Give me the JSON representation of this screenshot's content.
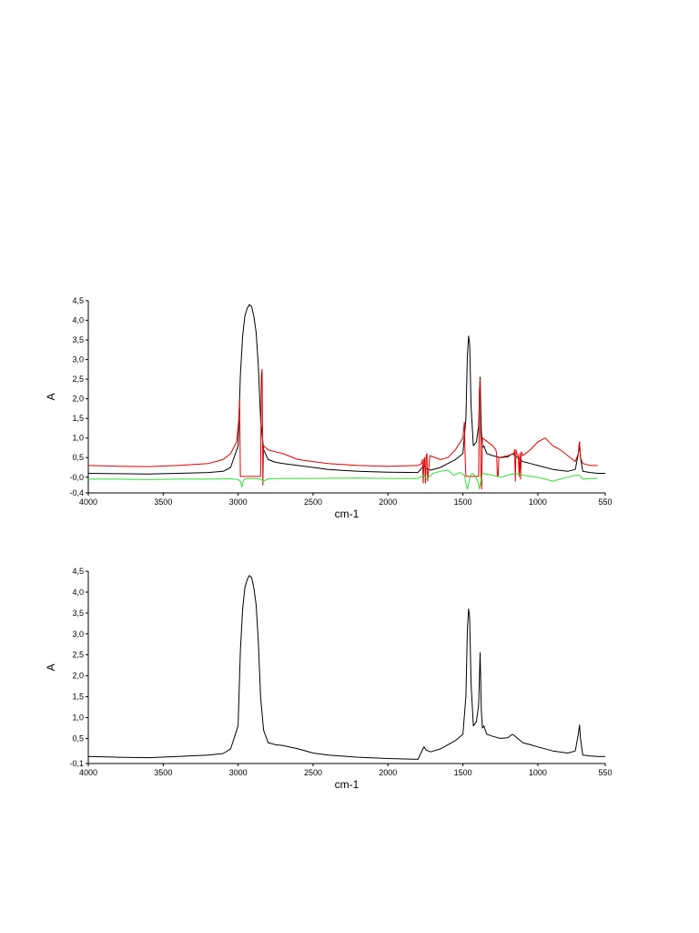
{
  "chart_data": [
    {
      "type": "line",
      "xlabel": "cm-1",
      "ylabel": "A",
      "xlim": [
        4000,
        550
      ],
      "ylim": [
        -0.4,
        4.5
      ],
      "x_reversed": true,
      "xticks": [
        4000,
        3500,
        3000,
        2500,
        2000,
        1500,
        1000,
        550
      ],
      "xtick_labels": [
        "4000",
        "3500",
        "3000",
        "2500",
        "2000",
        "1500",
        "1000",
        "550"
      ],
      "yticks": [
        -0.4,
        0.0,
        0.5,
        1.0,
        1.5,
        2.0,
        2.5,
        3.0,
        3.5,
        4.0,
        4.5
      ],
      "ytick_labels": [
        "-0,4",
        "-0,0",
        "0,5",
        "1,0",
        "1,5",
        "2,0",
        "2,5",
        "3,0",
        "3,5",
        "4,0",
        "4,5"
      ],
      "series": [
        {
          "color": "#000000",
          "x": [
            4000,
            3800,
            3600,
            3400,
            3200,
            3100,
            3050,
            3000,
            2985,
            2970,
            2955,
            2940,
            2925,
            2910,
            2895,
            2880,
            2865,
            2850,
            2830,
            2800,
            2750,
            2700,
            2600,
            2500,
            2400,
            2200,
            2000,
            1800,
            1760,
            1745,
            1730,
            1715,
            1650,
            1600,
            1550,
            1500,
            1480,
            1470,
            1462,
            1455,
            1445,
            1430,
            1410,
            1395,
            1385,
            1377,
            1370,
            1360,
            1340,
            1300,
            1250,
            1200,
            1170,
            1150,
            1100,
            1050,
            1000,
            900,
            800,
            750,
            730,
            722,
            715,
            700,
            650,
            600,
            550
          ],
          "y": [
            0.1,
            0.09,
            0.08,
            0.1,
            0.12,
            0.15,
            0.25,
            0.8,
            2.6,
            3.6,
            4.1,
            4.3,
            4.4,
            4.35,
            4.1,
            3.7,
            2.8,
            1.5,
            0.7,
            0.45,
            0.38,
            0.35,
            0.3,
            0.25,
            0.2,
            0.15,
            0.13,
            0.12,
            0.3,
            0.22,
            0.2,
            0.18,
            0.25,
            0.35,
            0.45,
            0.6,
            1.5,
            3.1,
            3.6,
            3.4,
            1.8,
            0.8,
            0.9,
            1.3,
            2.55,
            1.2,
            0.75,
            0.8,
            0.6,
            0.55,
            0.5,
            0.52,
            0.6,
            0.55,
            0.4,
            0.35,
            0.3,
            0.2,
            0.15,
            0.2,
            0.6,
            0.9,
            0.5,
            0.15,
            0.12,
            0.1,
            0.1
          ]
        },
        {
          "color": "#e00000",
          "x": [
            4000,
            3800,
            3600,
            3400,
            3200,
            3100,
            3050,
            3010,
            2995,
            2990,
            2985,
            2980,
            2975,
            2970,
            2850,
            2845,
            2840,
            2835,
            2830,
            2800,
            2750,
            2700,
            2600,
            2500,
            2400,
            2200,
            2000,
            1800,
            1775,
            1770,
            1765,
            1760,
            1755,
            1750,
            1745,
            1740,
            1735,
            1720,
            1650,
            1600,
            1550,
            1500,
            1490,
            1485,
            1480,
            1475,
            1470,
            1400,
            1395,
            1390,
            1385,
            1380,
            1375,
            1370,
            1300,
            1280,
            1275,
            1270,
            1265,
            1260,
            1200,
            1160,
            1155,
            1150,
            1145,
            1140,
            1130,
            1125,
            1120,
            1115,
            1110,
            1105,
            1100,
            1050,
            1000,
            950,
            900,
            850,
            800,
            750,
            730,
            722,
            715,
            700,
            650,
            600
          ],
          "y": [
            0.3,
            0.28,
            0.27,
            0.3,
            0.35,
            0.45,
            0.6,
            0.9,
            1.5,
            2.0,
            0.02,
            0.02,
            0.02,
            0.02,
            0.02,
            2.6,
            2.75,
            -0.2,
            0.8,
            0.7,
            0.65,
            0.6,
            0.45,
            0.4,
            0.35,
            0.3,
            0.28,
            0.3,
            0.35,
            0.45,
            -0.15,
            0.45,
            0.5,
            -0.15,
            0.55,
            0.6,
            -0.1,
            0.55,
            0.45,
            0.5,
            0.7,
            1.0,
            1.4,
            0.5,
            0.02,
            0.02,
            0.02,
            0.02,
            0.02,
            2.2,
            2.5,
            0.02,
            -0.3,
            1.0,
            0.8,
            0.7,
            0.6,
            0.02,
            0.02,
            0.5,
            0.55,
            0.6,
            0.7,
            -0.1,
            0.7,
            0.6,
            0.55,
            0.02,
            0.6,
            -0.05,
            0.65,
            0.6,
            0.55,
            0.7,
            0.9,
            1.0,
            0.8,
            0.7,
            0.55,
            0.4,
            0.6,
            0.9,
            0.5,
            0.35,
            0.3,
            0.3
          ]
        },
        {
          "color": "#33dd33",
          "x": [
            4000,
            3800,
            3600,
            3400,
            3200,
            3050,
            3000,
            2985,
            2975,
            2965,
            2950,
            2900,
            2850,
            2830,
            2800,
            2700,
            2500,
            2200,
            2000,
            1800,
            1760,
            1740,
            1700,
            1650,
            1600,
            1560,
            1520,
            1490,
            1480,
            1470,
            1455,
            1440,
            1420,
            1400,
            1390,
            1370,
            1300,
            1250,
            1200,
            1150,
            1100,
            1000,
            950,
            900,
            850,
            800,
            750,
            722,
            700,
            650,
            600
          ],
          "y": [
            -0.05,
            -0.05,
            -0.06,
            -0.05,
            -0.05,
            -0.04,
            -0.06,
            -0.1,
            -0.25,
            -0.08,
            -0.04,
            -0.03,
            -0.05,
            -0.1,
            -0.04,
            -0.03,
            -0.03,
            -0.02,
            -0.03,
            -0.03,
            0.05,
            -0.05,
            0.1,
            0.15,
            0.18,
            0.05,
            0.12,
            0.05,
            -0.15,
            -0.3,
            -0.05,
            0.1,
            0.05,
            -0.1,
            -0.3,
            0.1,
            0.05,
            0.0,
            0.05,
            0.1,
            0.05,
            0.0,
            -0.05,
            -0.1,
            -0.05,
            0.0,
            0.05,
            0.05,
            -0.05,
            -0.03,
            -0.03
          ]
        }
      ]
    },
    {
      "type": "line",
      "xlabel": "cm-1",
      "ylabel": "A",
      "xlim": [
        4000,
        550
      ],
      "ylim": [
        -0.1,
        4.5
      ],
      "x_reversed": true,
      "xticks": [
        4000,
        3500,
        3000,
        2500,
        2000,
        1500,
        1000,
        550
      ],
      "xtick_labels": [
        "4000",
        "3500",
        "3000",
        "2500",
        "2000",
        "1500",
        "1000",
        "550"
      ],
      "yticks": [
        -0.1,
        0.5,
        1.0,
        1.5,
        2.0,
        2.5,
        3.0,
        3.5,
        4.0,
        4.5
      ],
      "ytick_labels": [
        "-0,1",
        "0,5",
        "1,0",
        "1,5",
        "2,0",
        "2,5",
        "3,0",
        "3,5",
        "4,0",
        "4,5"
      ],
      "series": [
        {
          "color": "#000000",
          "x": [
            4000,
            3800,
            3600,
            3400,
            3200,
            3100,
            3050,
            3000,
            2985,
            2970,
            2955,
            2940,
            2925,
            2910,
            2895,
            2880,
            2865,
            2850,
            2830,
            2800,
            2750,
            2700,
            2600,
            2500,
            2400,
            2200,
            2000,
            1800,
            1760,
            1745,
            1730,
            1715,
            1650,
            1600,
            1550,
            1500,
            1480,
            1470,
            1462,
            1455,
            1445,
            1430,
            1410,
            1395,
            1385,
            1377,
            1370,
            1360,
            1340,
            1300,
            1250,
            1200,
            1170,
            1150,
            1100,
            1050,
            1000,
            900,
            800,
            750,
            730,
            722,
            715,
            700,
            650,
            600,
            550
          ],
          "y": [
            0.07,
            0.05,
            0.04,
            0.07,
            0.1,
            0.14,
            0.25,
            0.8,
            2.6,
            3.6,
            4.1,
            4.3,
            4.4,
            4.35,
            4.1,
            3.7,
            2.8,
            1.5,
            0.7,
            0.4,
            0.35,
            0.33,
            0.25,
            0.15,
            0.1,
            0.05,
            0.02,
            0.0,
            0.3,
            0.22,
            0.2,
            0.18,
            0.25,
            0.35,
            0.45,
            0.6,
            1.5,
            3.1,
            3.6,
            3.4,
            1.8,
            0.8,
            0.9,
            1.3,
            2.55,
            1.2,
            0.75,
            0.8,
            0.6,
            0.55,
            0.5,
            0.52,
            0.6,
            0.55,
            0.4,
            0.35,
            0.3,
            0.2,
            0.15,
            0.2,
            0.6,
            0.82,
            0.5,
            0.1,
            0.08,
            0.07,
            0.07
          ]
        }
      ]
    }
  ]
}
